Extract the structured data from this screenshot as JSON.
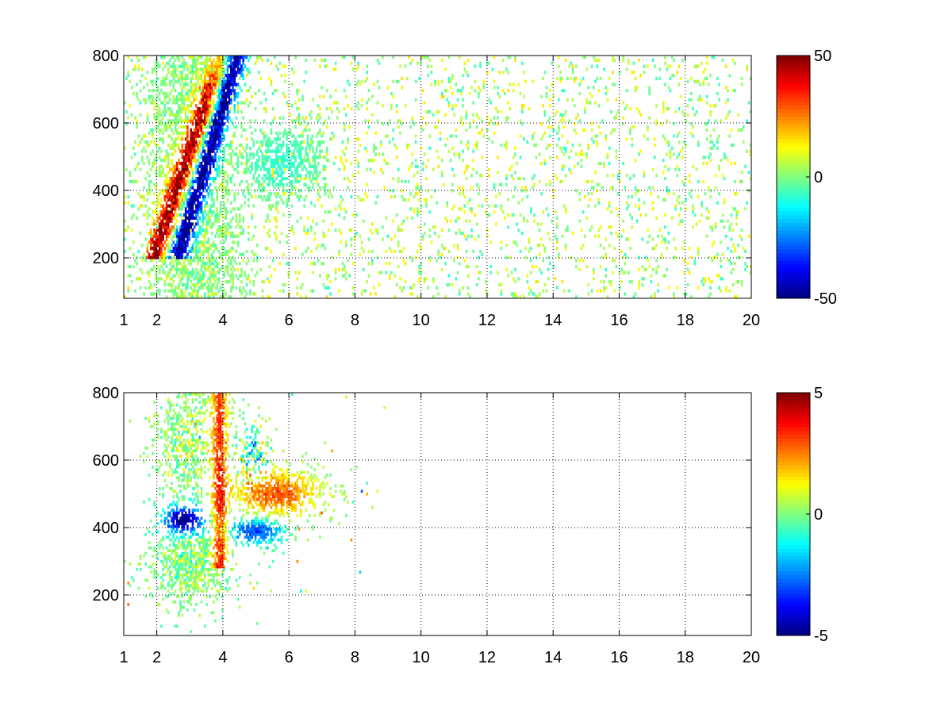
{
  "chart_data": [
    {
      "type": "heatmap",
      "x_ticks": [
        "1",
        "2",
        "4",
        "6",
        "8",
        "10",
        "12",
        "14",
        "16",
        "18",
        "20"
      ],
      "x_tick_values": [
        1,
        2,
        4,
        6,
        8,
        10,
        12,
        14,
        16,
        18,
        20
      ],
      "y_ticks": [
        "200",
        "400",
        "600",
        "800"
      ],
      "y_tick_values": [
        200,
        400,
        600,
        800
      ],
      "xlim": [
        1,
        20
      ],
      "ylim": [
        80,
        800
      ],
      "grid": true,
      "colormap": "jet",
      "colorbar": {
        "ticks": [
          "50",
          "0",
          "-50"
        ],
        "tick_values": [
          50,
          0,
          -50
        ],
        "limits": [
          -50,
          50
        ]
      },
      "structure": {
        "positive_ridge": {
          "x_range": [
            2.0,
            3.6
          ],
          "y_range": [
            230,
            650
          ],
          "peak": 50
        },
        "negative_ridge": {
          "x_range": [
            2.8,
            4.4
          ],
          "y_range": [
            260,
            800
          ],
          "peak": -50
        },
        "sparse_noise_region": {
          "x_range": [
            5,
            20
          ],
          "y_range": [
            80,
            800
          ],
          "magnitude": 12
        }
      }
    },
    {
      "type": "heatmap",
      "x_ticks": [
        "1",
        "2",
        "4",
        "6",
        "8",
        "10",
        "12",
        "14",
        "16",
        "18",
        "20"
      ],
      "x_tick_values": [
        1,
        2,
        4,
        6,
        8,
        10,
        12,
        14,
        16,
        18,
        20
      ],
      "y_ticks": [
        "200",
        "400",
        "600",
        "800"
      ],
      "y_tick_values": [
        200,
        400,
        600,
        800
      ],
      "xlim": [
        1,
        20
      ],
      "ylim": [
        80,
        800
      ],
      "grid": true,
      "colormap": "jet",
      "colorbar": {
        "ticks": [
          "5",
          "0",
          "-5"
        ],
        "tick_values": [
          5,
          0,
          -5
        ],
        "limits": [
          -5,
          5
        ]
      },
      "structure": {
        "negative_band": {
          "x_range": [
            2.0,
            3.4
          ],
          "y_range": [
            380,
            470
          ],
          "peak": -5
        },
        "positive_column": {
          "x_range": [
            3.6,
            4.3
          ],
          "y_range": [
            300,
            800
          ],
          "peak": 3
        },
        "positive_patch": {
          "x_range": [
            4.5,
            6.9
          ],
          "y_range": [
            440,
            560
          ],
          "peak": 3
        },
        "negative_patch": {
          "x_range": [
            4.5,
            6.0
          ],
          "y_range": [
            350,
            420
          ],
          "peak": -3
        }
      }
    }
  ]
}
